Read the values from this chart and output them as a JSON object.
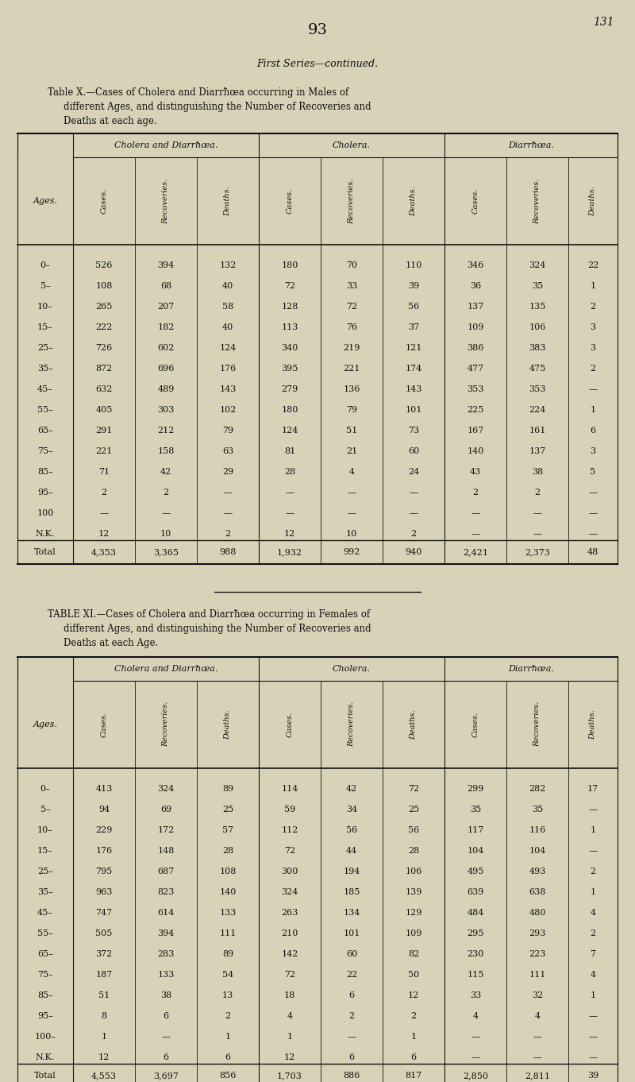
{
  "bg_color": "#d8d3b8",
  "page_number": "93",
  "page_ref": "131",
  "first_series": "First Series—continued.",
  "table_x_title_line1": "Table X.—Cases of Cholera and Diarrħœa occurring in Males of",
  "table_x_title_line2": "different Ages, and distinguishing the Number of Recoveries and",
  "table_x_title_line3": "Deaths at each age.",
  "table_xi_title_line1": "TABLE XI.—Cases of Cholera and Diarrħœa occurring in Females of",
  "table_xi_title_line2": "different Ages, and distinguishing the Number of Recoveries and",
  "table_xi_title_line3": "Deaths at each Age.",
  "group_headers": [
    "Cholera and Diarrħœa.",
    "Cholera.",
    "Diarrħœa."
  ],
  "col_headers": [
    "Cases.",
    "Recoveries.",
    "Deaths.",
    "Cases.",
    "Recoveries.",
    "Deaths.",
    "Cases.",
    "Recoveries.",
    "Deaths."
  ],
  "ages_label": "Ages.",
  "table_x_ages": [
    "0–",
    "5–",
    "10–",
    "15–",
    "25–",
    "35–",
    "45–",
    "55–",
    "65–",
    "75–",
    "85–",
    "95–",
    "100",
    "N.K.",
    "Total"
  ],
  "table_x_data": [
    [
      "526",
      "394",
      "132",
      "180",
      "70",
      "110",
      "346",
      "324",
      "22"
    ],
    [
      "108",
      "68",
      "40",
      "72",
      "33",
      "39",
      "36",
      "35",
      "1"
    ],
    [
      "265",
      "207",
      "58",
      "128",
      "72",
      "56",
      "137",
      "135",
      "2"
    ],
    [
      "222",
      "182",
      "40",
      "113",
      "76",
      "37",
      "109",
      "106",
      "3"
    ],
    [
      "726",
      "602",
      "124",
      "340",
      "219",
      "121",
      "386",
      "383",
      "3"
    ],
    [
      "872",
      "696",
      "176",
      "395",
      "221",
      "174",
      "477",
      "475",
      "2"
    ],
    [
      "632",
      "489",
      "143",
      "279",
      "136",
      "143",
      "353",
      "353",
      "—"
    ],
    [
      "405",
      "303",
      "102",
      "180",
      "79",
      "101",
      "225",
      "224",
      "1"
    ],
    [
      "291",
      "212",
      "79",
      "124",
      "51",
      "73",
      "167",
      "161",
      "6"
    ],
    [
      "221",
      "158",
      "63",
      "81",
      "21",
      "60",
      "140",
      "137",
      "3"
    ],
    [
      "71",
      "42",
      "29",
      "28",
      "4",
      "24",
      "43",
      "38",
      "5"
    ],
    [
      "2",
      "2",
      "—",
      "—",
      "—",
      "—",
      "2",
      "2",
      "—"
    ],
    [
      "—",
      "—",
      "—",
      "—",
      "—",
      "—",
      "—",
      "—",
      "—"
    ],
    [
      "12",
      "10",
      "2",
      "12",
      "10",
      "2",
      "—",
      "—",
      "—"
    ],
    [
      "4,353",
      "3,365",
      "988",
      "1,932",
      "992",
      "940",
      "2,421",
      "2,373",
      "48"
    ]
  ],
  "table_xi_ages": [
    "0–",
    "5–",
    "10–",
    "15–",
    "25–",
    "35–",
    "45–",
    "55–",
    "65–",
    "75–",
    "85–",
    "95–",
    "100–",
    "N.K.",
    "Total"
  ],
  "table_xi_data": [
    [
      "413",
      "324",
      "89",
      "114",
      "42",
      "72",
      "299",
      "282",
      "17"
    ],
    [
      "94",
      "69",
      "25",
      "59",
      "34",
      "25",
      "35",
      "35",
      "—"
    ],
    [
      "229",
      "172",
      "57",
      "112",
      "56",
      "56",
      "117",
      "116",
      "1"
    ],
    [
      "176",
      "148",
      "28",
      "72",
      "44",
      "28",
      "104",
      "104",
      "—"
    ],
    [
      "795",
      "687",
      "108",
      "300",
      "194",
      "106",
      "495",
      "493",
      "2"
    ],
    [
      "963",
      "823",
      "140",
      "324",
      "185",
      "139",
      "639",
      "638",
      "1"
    ],
    [
      "747",
      "614",
      "133",
      "263",
      "134",
      "129",
      "484",
      "480",
      "4"
    ],
    [
      "505",
      "394",
      "111",
      "210",
      "101",
      "109",
      "295",
      "293",
      "2"
    ],
    [
      "372",
      "283",
      "89",
      "142",
      "60",
      "82",
      "230",
      "223",
      "7"
    ],
    [
      "187",
      "133",
      "54",
      "72",
      "22",
      "50",
      "115",
      "111",
      "4"
    ],
    [
      "51",
      "38",
      "13",
      "18",
      "6",
      "12",
      "33",
      "32",
      "1"
    ],
    [
      "8",
      "6",
      "2",
      "4",
      "2",
      "2",
      "4",
      "4",
      "—"
    ],
    [
      "1",
      "—",
      "1",
      "1",
      "—",
      "1",
      "—",
      "—",
      "—"
    ],
    [
      "12",
      "6",
      "6",
      "12",
      "6",
      "6",
      "—",
      "—",
      "—"
    ],
    [
      "4,553",
      "3,697",
      "856",
      "1,703",
      "886",
      "817",
      "2,850",
      "2,811",
      "39"
    ]
  ]
}
